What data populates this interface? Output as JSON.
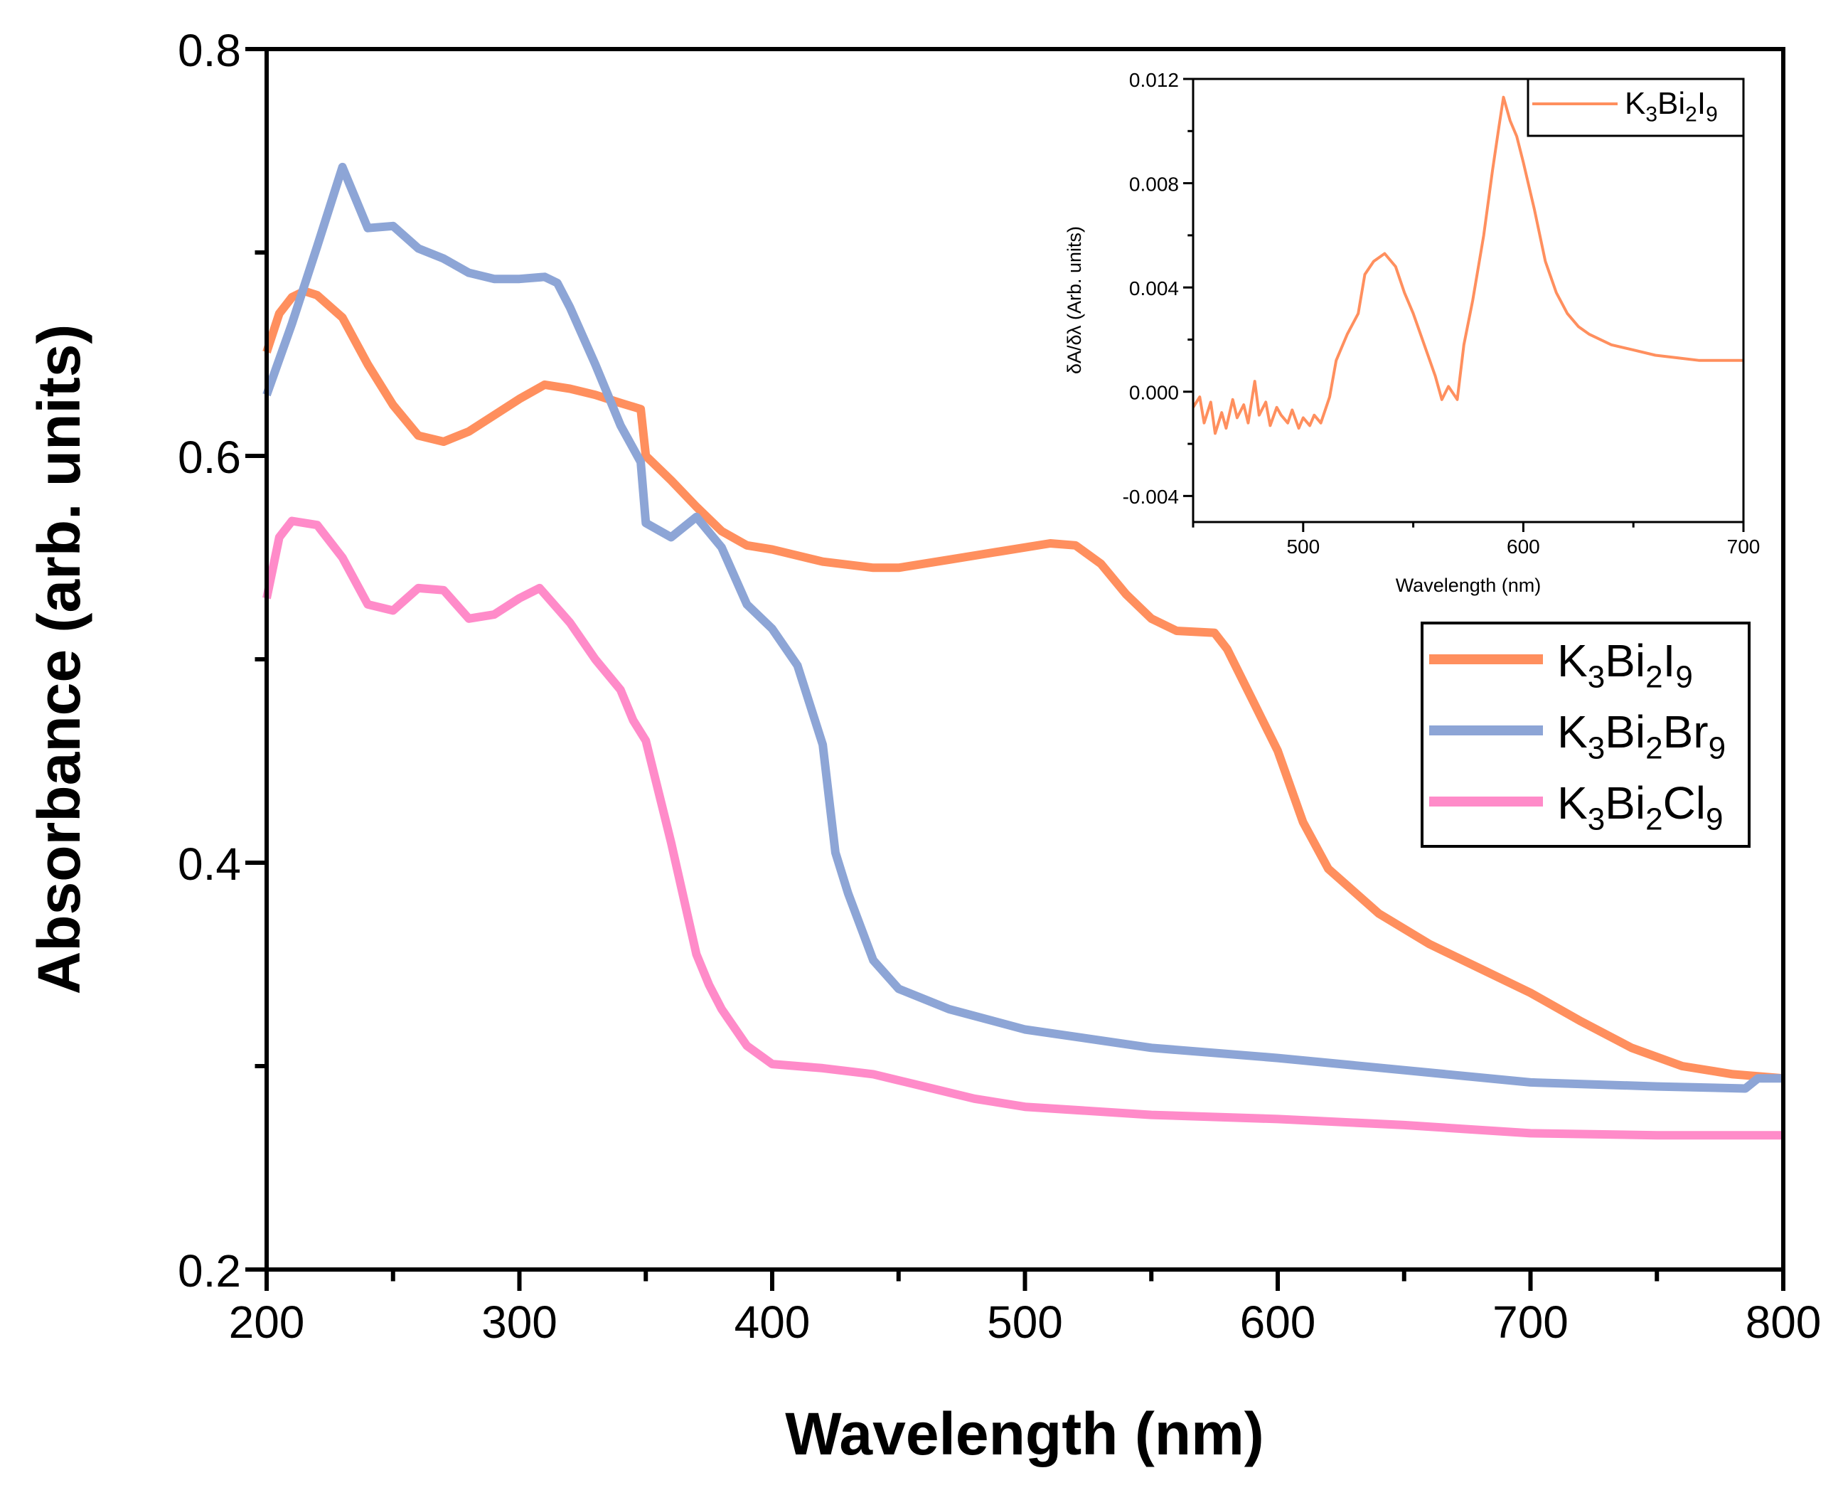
{
  "chart_data": [
    {
      "type": "line",
      "title": "",
      "xlabel": "Wavelength (nm)",
      "ylabel": "Absorbance (arb. units)",
      "xlim": [
        200,
        800
      ],
      "ylim": [
        0.2,
        0.8
      ],
      "xticks": [
        "200",
        "300",
        "400",
        "500",
        "600",
        "700",
        "800"
      ],
      "yticks": [
        "0.2",
        "0.4",
        "0.6",
        "0.8"
      ],
      "grid": false,
      "legend_position": "right",
      "series": [
        {
          "name": "K3Bi2I9",
          "label_parts": [
            "K",
            "3",
            "Bi",
            "2",
            "I",
            "9"
          ],
          "color": "#FF8F5E",
          "x": [
            200,
            205,
            210,
            215,
            220,
            230,
            240,
            250,
            260,
            270,
            280,
            290,
            300,
            310,
            320,
            330,
            340,
            348,
            350,
            360,
            370,
            380,
            390,
            400,
            420,
            440,
            450,
            470,
            490,
            510,
            520,
            530,
            540,
            550,
            560,
            575,
            580,
            590,
            600,
            610,
            620,
            640,
            660,
            680,
            700,
            720,
            740,
            760,
            780,
            800
          ],
          "y": [
            0.651,
            0.67,
            0.678,
            0.681,
            0.679,
            0.668,
            0.645,
            0.625,
            0.61,
            0.607,
            0.612,
            0.62,
            0.628,
            0.635,
            0.633,
            0.63,
            0.626,
            0.623,
            0.6,
            0.588,
            0.575,
            0.563,
            0.556,
            0.554,
            0.548,
            0.545,
            0.545,
            0.549,
            0.553,
            0.557,
            0.556,
            0.547,
            0.532,
            0.52,
            0.514,
            0.513,
            0.505,
            0.48,
            0.455,
            0.42,
            0.397,
            0.375,
            0.36,
            0.348,
            0.336,
            0.322,
            0.309,
            0.3,
            0.296,
            0.294
          ]
        },
        {
          "name": "K3Bi2Br9",
          "label_parts": [
            "K",
            "3",
            "Bi",
            "2",
            "Br",
            "9"
          ],
          "color": "#8DA5D6",
          "x": [
            200,
            210,
            220,
            230,
            240,
            250,
            260,
            270,
            280,
            290,
            300,
            310,
            315,
            320,
            330,
            340,
            348,
            350,
            360,
            370,
            380,
            390,
            400,
            410,
            420,
            425,
            430,
            440,
            450,
            470,
            500,
            550,
            600,
            650,
            700,
            750,
            785,
            790,
            800
          ],
          "y": [
            0.63,
            0.665,
            0.703,
            0.742,
            0.712,
            0.713,
            0.702,
            0.697,
            0.69,
            0.687,
            0.687,
            0.688,
            0.685,
            0.673,
            0.645,
            0.615,
            0.597,
            0.567,
            0.56,
            0.57,
            0.555,
            0.527,
            0.515,
            0.497,
            0.458,
            0.405,
            0.385,
            0.352,
            0.338,
            0.328,
            0.318,
            0.309,
            0.304,
            0.298,
            0.292,
            0.29,
            0.289,
            0.294,
            0.294
          ]
        },
        {
          "name": "K3Bi2Cl9",
          "label_parts": [
            "K",
            "3",
            "Bi",
            "2",
            "Cl",
            "9"
          ],
          "color": "#FF8BC9",
          "x": [
            200,
            205,
            210,
            220,
            230,
            240,
            250,
            260,
            270,
            280,
            290,
            300,
            308,
            320,
            330,
            340,
            345,
            350,
            360,
            370,
            375,
            380,
            390,
            400,
            420,
            440,
            460,
            480,
            500,
            550,
            600,
            650,
            700,
            750,
            800
          ],
          "y": [
            0.53,
            0.56,
            0.568,
            0.566,
            0.55,
            0.527,
            0.524,
            0.535,
            0.534,
            0.52,
            0.522,
            0.53,
            0.535,
            0.518,
            0.5,
            0.485,
            0.47,
            0.46,
            0.41,
            0.355,
            0.34,
            0.328,
            0.31,
            0.301,
            0.299,
            0.296,
            0.29,
            0.284,
            0.28,
            0.276,
            0.274,
            0.271,
            0.267,
            0.266,
            0.266
          ]
        }
      ]
    },
    {
      "type": "line",
      "title": "",
      "xlabel": "Wavelength (nm)",
      "ylabel": "δA/δλ (Arb. units)",
      "xlim": [
        450,
        700
      ],
      "ylim": [
        -0.005,
        0.012
      ],
      "xticks": [
        "500",
        "600",
        "700"
      ],
      "yticks": [
        "-0.004",
        "0.000",
        "0.004",
        "0.008",
        "0.012"
      ],
      "grid": false,
      "legend_position": "top-right",
      "series": [
        {
          "name": "K3Bi2I9",
          "label_parts": [
            "K",
            "3",
            "Bi",
            "2",
            "I",
            "9"
          ],
          "color": "#FF8F5E",
          "x": [
            450,
            453,
            455,
            458,
            460,
            463,
            465,
            468,
            470,
            473,
            475,
            478,
            480,
            483,
            485,
            488,
            490,
            493,
            495,
            498,
            500,
            503,
            505,
            508,
            512,
            515,
            520,
            525,
            528,
            532,
            537,
            542,
            546,
            550,
            555,
            560,
            563,
            566,
            570,
            573,
            577,
            582,
            586,
            589,
            591,
            594,
            597,
            600,
            605,
            610,
            615,
            620,
            625,
            630,
            640,
            650,
            660,
            670,
            680,
            690,
            700
          ],
          "y": [
            -0.0006,
            -0.0002,
            -0.0012,
            -0.0004,
            -0.0016,
            -0.0008,
            -0.0014,
            -0.0003,
            -0.001,
            -0.0005,
            -0.0012,
            0.0004,
            -0.0009,
            -0.0004,
            -0.0013,
            -0.0006,
            -0.0009,
            -0.0012,
            -0.0007,
            -0.0014,
            -0.001,
            -0.0013,
            -0.0009,
            -0.0012,
            -0.0002,
            0.0012,
            0.0022,
            0.003,
            0.0045,
            0.005,
            0.0053,
            0.0048,
            0.0038,
            0.003,
            0.0018,
            0.0006,
            -0.0003,
            0.0002,
            -0.0003,
            0.0018,
            0.0035,
            0.006,
            0.0085,
            0.0102,
            0.0113,
            0.0104,
            0.0098,
            0.0088,
            0.007,
            0.005,
            0.0038,
            0.003,
            0.0025,
            0.0022,
            0.0018,
            0.0016,
            0.0014,
            0.0013,
            0.0012,
            0.0012,
            0.0012
          ]
        }
      ]
    }
  ]
}
